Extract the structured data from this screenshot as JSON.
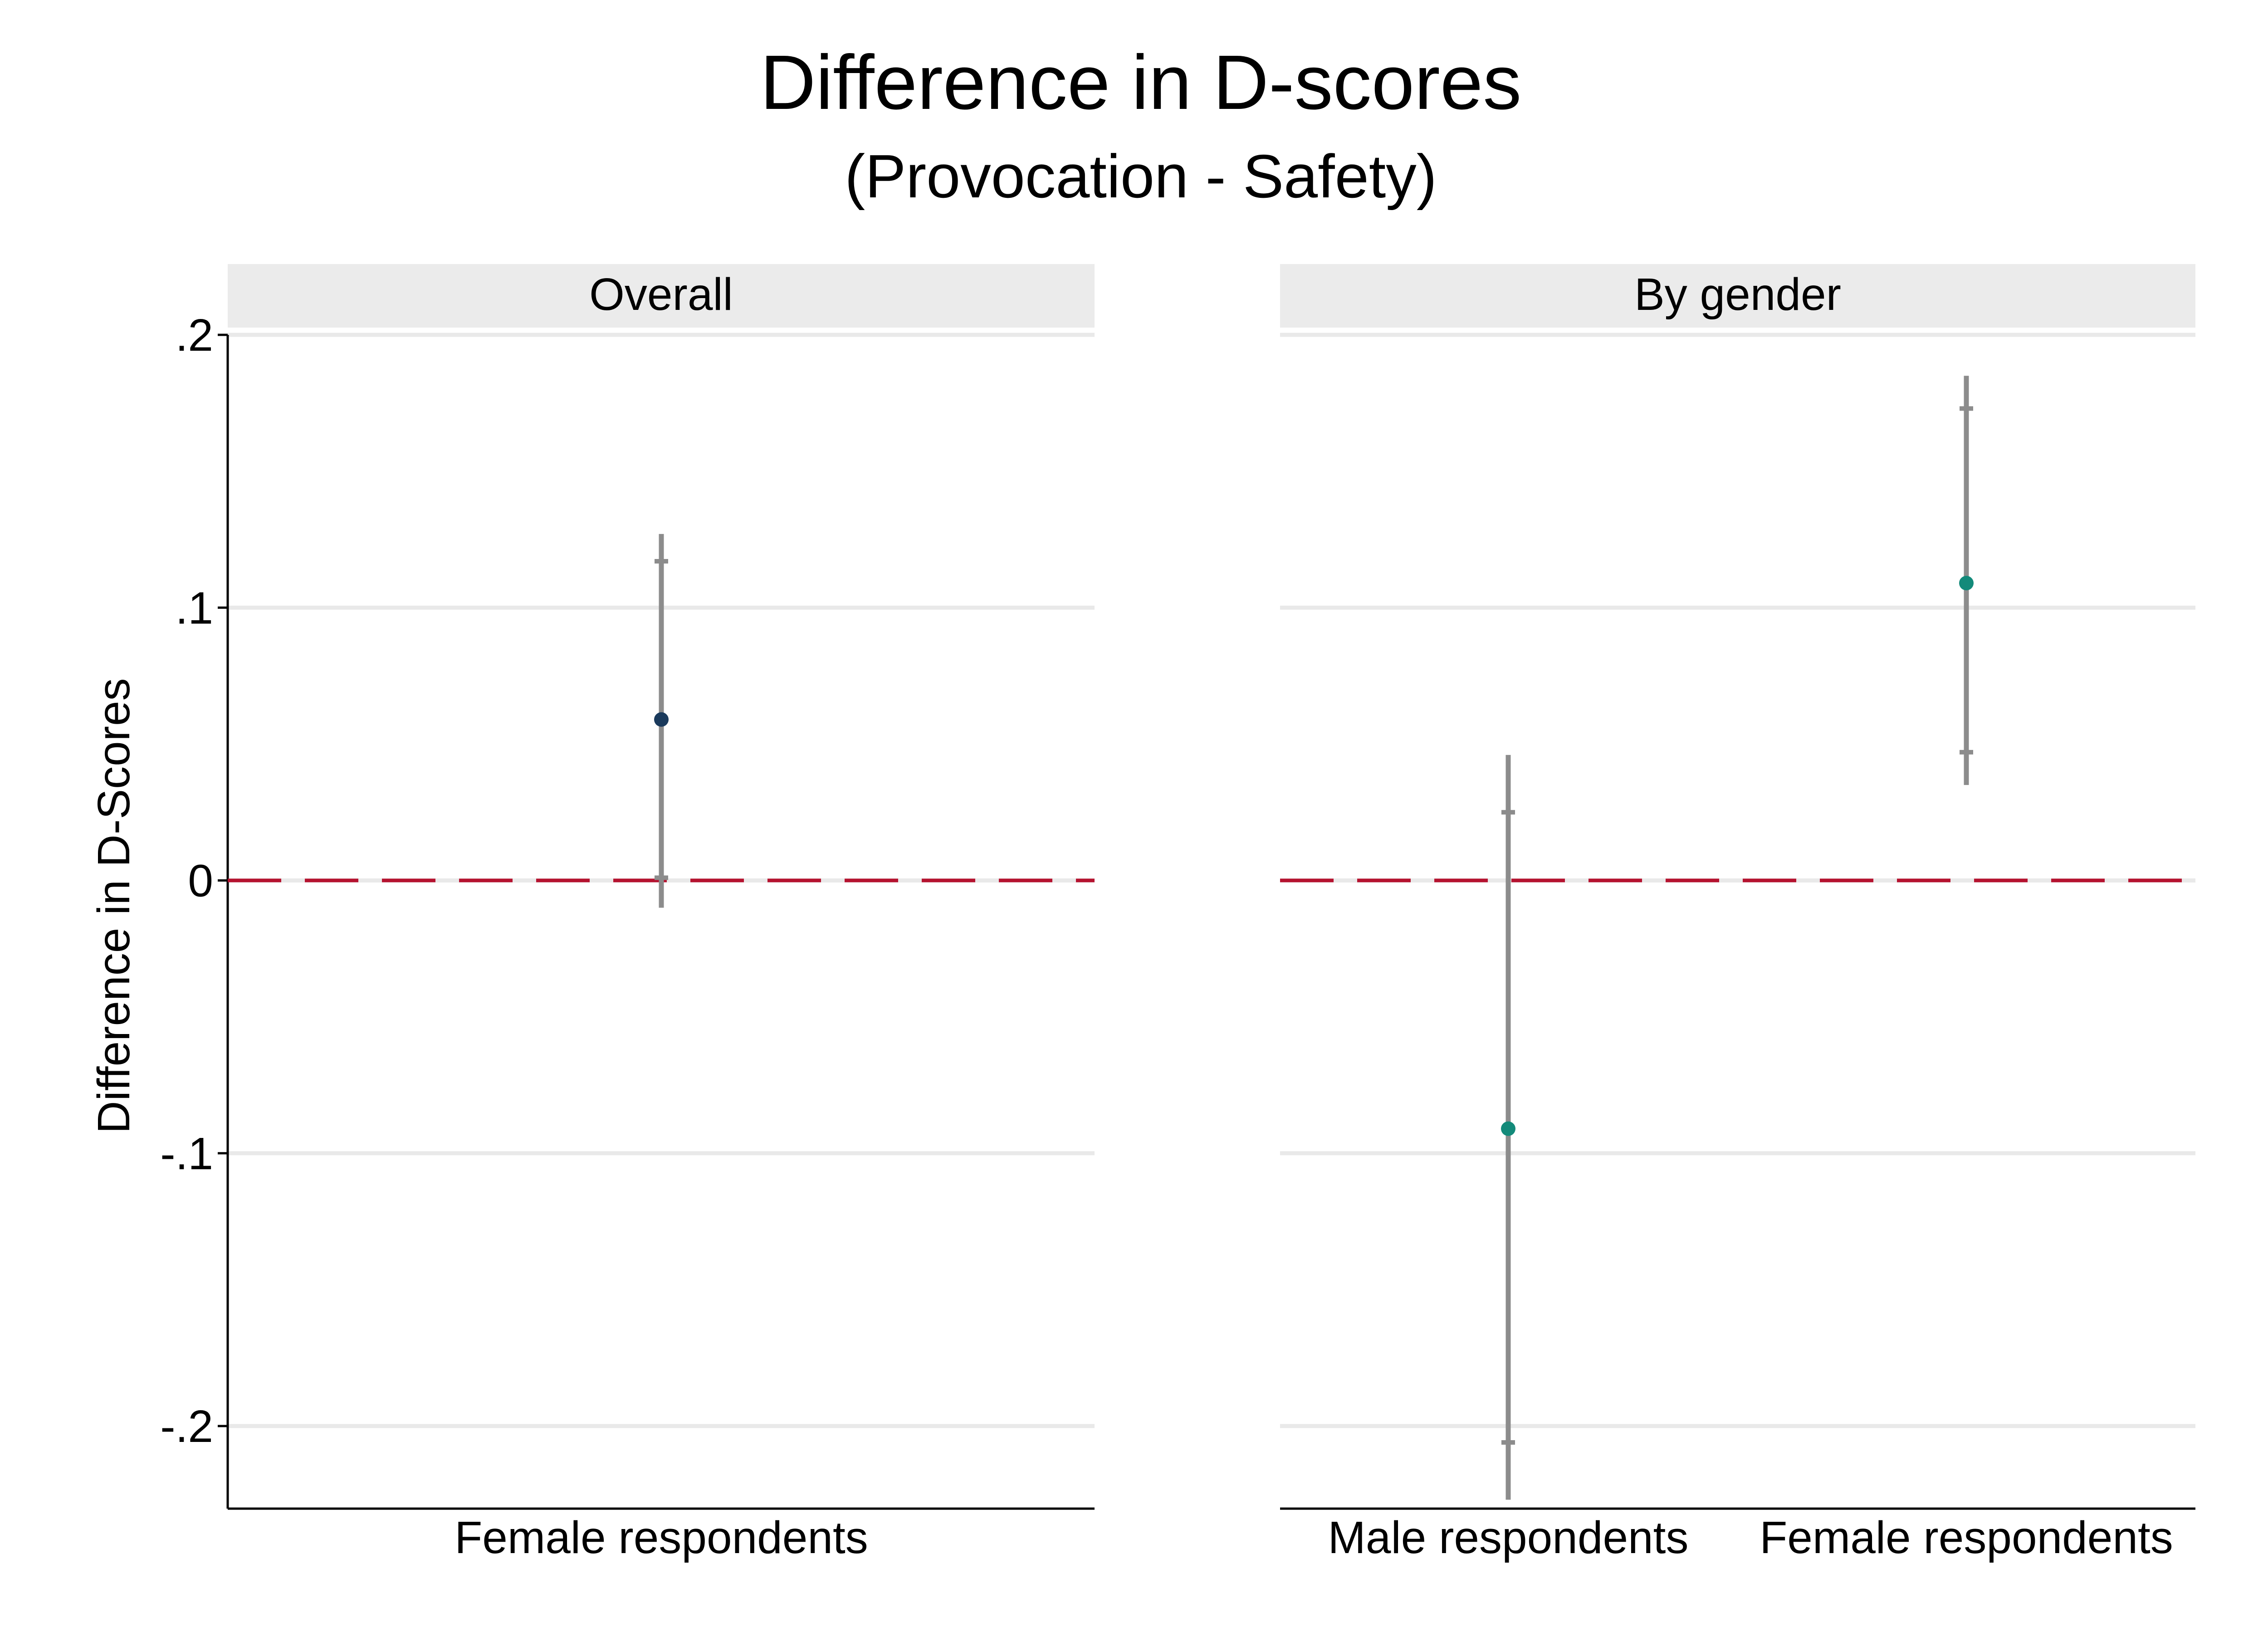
{
  "title": "Difference in D-scores",
  "subtitle": "(Provocation - Safety)",
  "colors": {
    "gridline": "#e9e9e9",
    "strip_background": "#ebebeb",
    "reference_line": "#b5122f",
    "ci_line": "#8c8c8c",
    "overall_point": "#1a3a5c",
    "gender_point": "#138a7a"
  },
  "chart_data": [
    {
      "type": "scatter",
      "panel": "Overall",
      "ylabel": "Difference in D-Scores",
      "ylim": [
        -0.23,
        0.2
      ],
      "yticks": [
        0.2,
        0.1,
        0,
        -0.1,
        -0.2
      ],
      "ytick_labels": [
        ".2",
        ".1",
        "0",
        "-.1",
        "-.2"
      ],
      "categories": [
        "Female respondents"
      ],
      "points": [
        {
          "category": "Female respondents",
          "estimate": 0.059,
          "ci95": [
            -0.01,
            0.127
          ],
          "ci90": [
            0.001,
            0.117
          ]
        }
      ],
      "reference_line": 0,
      "grid": true
    },
    {
      "type": "scatter",
      "panel": "By gender",
      "ylim": [
        -0.23,
        0.2
      ],
      "yticks": [
        0.2,
        0.1,
        0,
        -0.1,
        -0.2
      ],
      "categories": [
        "Male respondents",
        "Female respondents"
      ],
      "points": [
        {
          "category": "Male respondents",
          "estimate": -0.091,
          "ci95": [
            -0.227,
            0.046
          ],
          "ci90": [
            -0.206,
            0.025
          ]
        },
        {
          "category": "Female respondents",
          "estimate": 0.109,
          "ci95": [
            0.035,
            0.185
          ],
          "ci90": [
            0.047,
            0.173
          ]
        }
      ],
      "reference_line": 0,
      "grid": true
    }
  ]
}
